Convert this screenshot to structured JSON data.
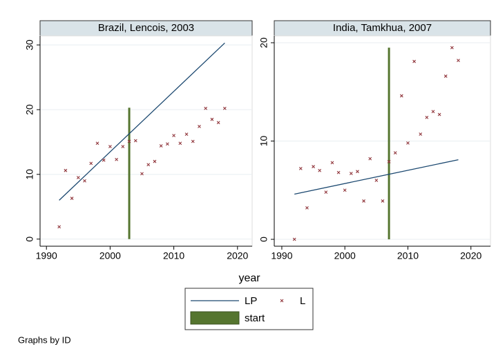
{
  "chart_data": [
    {
      "type": "combo",
      "title": "Brazil, Lencois, 2003",
      "xlim": [
        1989,
        2022.3
      ],
      "ylim": [
        -1.1,
        31.4
      ],
      "xticks": [
        1990,
        2000,
        2010,
        2020
      ],
      "yticks": [
        0,
        10,
        20,
        30
      ],
      "grid": true,
      "series": [
        {
          "name": "LP",
          "type": "line",
          "color": "#1a476f",
          "x": [
            1992,
            2018
          ],
          "values": [
            6.0,
            30.3
          ]
        },
        {
          "name": "L",
          "type": "scatter",
          "color": "#90353b",
          "x": [
            1992,
            1993,
            1994,
            1995,
            1996,
            1997,
            1998,
            1999,
            2000,
            2001,
            2002,
            2003,
            2004,
            2005,
            2006,
            2007,
            2008,
            2009,
            2010,
            2011,
            2012,
            2013,
            2014,
            2015,
            2016,
            2017,
            2018
          ],
          "values": [
            1.9,
            10.6,
            6.3,
            9.5,
            9.0,
            11.7,
            14.8,
            12.2,
            14.3,
            12.3,
            14.3,
            15.1,
            15.2,
            10.1,
            11.5,
            12.0,
            14.4,
            14.7,
            16.0,
            14.8,
            16.2,
            15.1,
            17.4,
            20.2,
            18.5,
            18.0,
            20.2
          ]
        },
        {
          "name": "start",
          "type": "bar",
          "color": "#55752f",
          "x": [
            2003
          ],
          "values": [
            20.3
          ]
        }
      ]
    },
    {
      "type": "combo",
      "title": "India, Tamkhua, 2007",
      "xlim": [
        1988.8,
        2023.1
      ],
      "ylim": [
        -0.7,
        20.7
      ],
      "xticks": [
        1990,
        2000,
        2010,
        2020
      ],
      "yticks": [
        0,
        10,
        20
      ],
      "grid": true,
      "series": [
        {
          "name": "LP",
          "type": "line",
          "color": "#1a476f",
          "x": [
            1992,
            2018
          ],
          "values": [
            4.6,
            8.1
          ]
        },
        {
          "name": "L",
          "type": "scatter",
          "color": "#90353b",
          "x": [
            1992,
            1993,
            1994,
            1995,
            1996,
            1997,
            1998,
            1999,
            2000,
            2001,
            2002,
            2003,
            2004,
            2005,
            2006,
            2007,
            2008,
            2009,
            2010,
            2011,
            2012,
            2013,
            2014,
            2015,
            2016,
            2017,
            2018
          ],
          "values": [
            0,
            7.2,
            3.2,
            7.4,
            7.0,
            4.8,
            7.8,
            6.8,
            5.0,
            6.7,
            6.9,
            3.9,
            8.2,
            6.0,
            3.9,
            7.9,
            8.8,
            14.6,
            9.8,
            18.1,
            10.7,
            12.4,
            13.0,
            12.7,
            16.6,
            19.5,
            18.2
          ]
        },
        {
          "name": "start",
          "type": "bar",
          "color": "#55752f",
          "x": [
            2007
          ],
          "values": [
            19.5
          ]
        }
      ]
    }
  ],
  "xlabel": "year",
  "note": "Graphs by ID"
}
